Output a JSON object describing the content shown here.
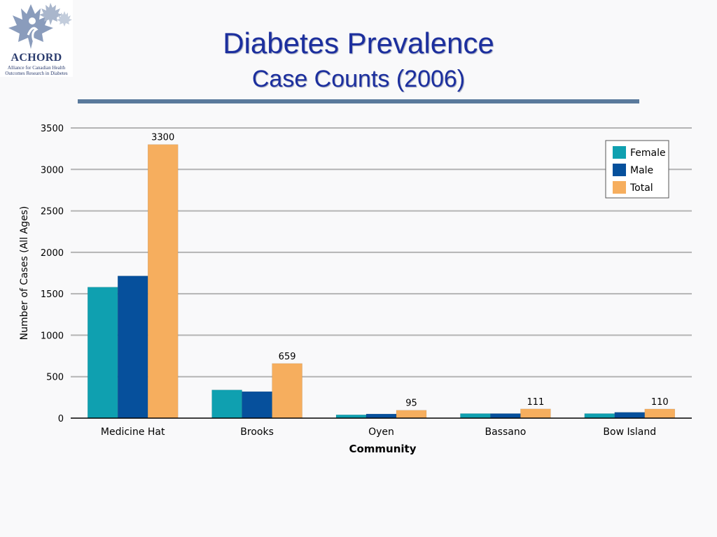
{
  "slide": {
    "title": "Diabetes Prevalence",
    "subtitle": "Case Counts (2006)"
  },
  "logo": {
    "name": "ACHORD",
    "tagline_1": "Alliance for Canadian Health",
    "tagline_2": "Outcomes Research in Diabetes"
  },
  "colors": {
    "female": "#0fa0b0",
    "male": "#06509c",
    "total": "#f6ae5e",
    "title": "#1c2f9e",
    "rule": "#5a7a9c"
  },
  "chart_data": {
    "type": "bar",
    "categories": [
      "Medicine Hat",
      "Brooks",
      "Oyen",
      "Bassano",
      "Bow Island"
    ],
    "series": [
      {
        "name": "Female",
        "values": [
          1580,
          340,
          40,
          55,
          55
        ]
      },
      {
        "name": "Male",
        "values": [
          1715,
          320,
          50,
          55,
          70
        ]
      },
      {
        "name": "Total",
        "values": [
          3300,
          659,
          95,
          111,
          110
        ]
      }
    ],
    "data_labels": [
      "3300",
      "659",
      "95",
      "111",
      "110"
    ],
    "xlabel": "Community",
    "ylabel": "Number of Cases (All Ages)",
    "ylim": [
      0,
      3500
    ],
    "yticks": [
      0,
      500,
      1000,
      1500,
      2000,
      2500,
      3000,
      3500
    ],
    "grid": true,
    "legend_position": "top-right"
  }
}
